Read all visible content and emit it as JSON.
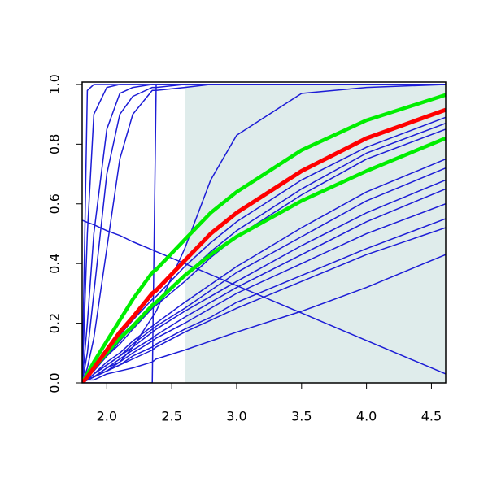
{
  "chart_data": {
    "type": "line",
    "xlim": [
      1.81,
      4.61
    ],
    "ylim": [
      0,
      1.008
    ],
    "xticks": [
      {
        "value": 2,
        "label": "2.0"
      },
      2.5,
      {
        "value": 3,
        "label": "3.0"
      },
      3.5,
      {
        "value": 4,
        "label": "4.0"
      },
      4.5
    ],
    "yticks": [
      {
        "value": 0,
        "label": "0.0"
      },
      0.2,
      0.4,
      0.6,
      0.8,
      {
        "value": 1,
        "label": "1.0"
      }
    ],
    "shaded_region": {
      "x": [
        2.6,
        4.61
      ],
      "y": [
        0,
        1
      ],
      "color": "#dfeceb"
    },
    "x": [
      1.81,
      1.85,
      1.9,
      2.0,
      2.1,
      2.2,
      2.35,
      2.38,
      2.6,
      2.8,
      3.0,
      3.5,
      4.0,
      4.61
    ],
    "series": [
      {
        "color": "#1c1cd6",
        "line_width": 1.5,
        "values": [
          0,
          0.98,
          1,
          1,
          1,
          1,
          1,
          1,
          1,
          1,
          1,
          1,
          1,
          1
        ]
      },
      {
        "color": "#1c1cd6",
        "line_width": 1.5,
        "values": [
          0,
          0.5,
          0.9,
          0.99,
          1,
          1,
          1,
          1,
          1,
          1,
          1,
          1,
          1,
          1
        ]
      },
      {
        "color": "#1c1cd6",
        "line_width": 1.5,
        "values": [
          0,
          0.2,
          0.5,
          0.85,
          0.97,
          0.99,
          1,
          1,
          1,
          1,
          1,
          1,
          1,
          1
        ]
      },
      {
        "color": "#1c1cd6",
        "line_width": 1.5,
        "values": [
          0,
          0.1,
          0.3,
          0.7,
          0.9,
          0.96,
          0.99,
          0.99,
          1,
          1,
          1,
          1,
          1,
          1
        ]
      },
      {
        "color": "#1c1cd6",
        "line_width": 1.5,
        "values": [
          0,
          0.05,
          0.15,
          0.45,
          0.75,
          0.9,
          0.98,
          0.98,
          0.99,
          1,
          1,
          1,
          1,
          1
        ]
      },
      {
        "color": "#1c1cd6",
        "line_width": 1.5,
        "values": [
          0,
          0,
          0,
          0,
          0,
          0,
          0,
          1,
          1,
          1,
          1,
          1,
          1,
          1
        ]
      },
      {
        "color": "#1c1cd6",
        "line_width": 1.5,
        "values": [
          0,
          0.01,
          0.02,
          0.04,
          0.07,
          0.12,
          0.22,
          0.24,
          0.45,
          0.68,
          0.83,
          0.97,
          0.99,
          1
        ]
      },
      {
        "color": "#1c1cd6",
        "line_width": 1.5,
        "values": [
          0.545,
          0.538,
          0.53,
          0.51,
          0.494,
          0.473,
          0.446,
          0.44,
          0.4,
          0.363,
          0.326,
          0.234,
          0.142,
          0.03
        ]
      },
      {
        "color": "#1c1cd6",
        "line_width": 1.5,
        "values": [
          0,
          0.02,
          0.05,
          0.1,
          0.16,
          0.21,
          0.28,
          0.29,
          0.39,
          0.47,
          0.54,
          0.68,
          0.79,
          0.89
        ]
      },
      {
        "color": "#1c1cd6",
        "line_width": 1.5,
        "values": [
          0,
          0.02,
          0.04,
          0.09,
          0.14,
          0.19,
          0.26,
          0.27,
          0.36,
          0.44,
          0.51,
          0.65,
          0.77,
          0.87
        ]
      },
      {
        "color": "#1c1cd6",
        "line_width": 1.5,
        "values": [
          0,
          0.02,
          0.04,
          0.09,
          0.13,
          0.18,
          0.25,
          0.26,
          0.34,
          0.42,
          0.49,
          0.63,
          0.75,
          0.85
        ]
      },
      {
        "color": "#1c1cd6",
        "line_width": 1.5,
        "values": [
          0,
          0.01,
          0.03,
          0.07,
          0.1,
          0.14,
          0.19,
          0.2,
          0.27,
          0.33,
          0.39,
          0.52,
          0.64,
          0.75
        ]
      },
      {
        "color": "#1c1cd6",
        "line_width": 1.5,
        "values": [
          0,
          0.01,
          0.03,
          0.06,
          0.09,
          0.13,
          0.18,
          0.19,
          0.25,
          0.31,
          0.37,
          0.49,
          0.61,
          0.72
        ]
      },
      {
        "color": "#1c1cd6",
        "line_width": 1.5,
        "values": [
          0,
          0.01,
          0.03,
          0.06,
          0.09,
          0.12,
          0.17,
          0.18,
          0.24,
          0.29,
          0.34,
          0.46,
          0.57,
          0.68
        ]
      },
      {
        "color": "#1c1cd6",
        "line_width": 1.5,
        "values": [
          0,
          0.01,
          0.02,
          0.05,
          0.08,
          0.11,
          0.15,
          0.16,
          0.22,
          0.27,
          0.32,
          0.43,
          0.54,
          0.65
        ]
      },
      {
        "color": "#1c1cd6",
        "line_width": 1.5,
        "values": [
          0,
          0.01,
          0.02,
          0.05,
          0.07,
          0.1,
          0.14,
          0.15,
          0.2,
          0.25,
          0.3,
          0.4,
          0.5,
          0.6
        ]
      },
      {
        "color": "#1c1cd6",
        "line_width": 1.5,
        "values": [
          0,
          0.01,
          0.02,
          0.04,
          0.06,
          0.09,
          0.12,
          0.13,
          0.18,
          0.22,
          0.27,
          0.36,
          0.45,
          0.55
        ]
      },
      {
        "color": "#1c1cd6",
        "line_width": 1.5,
        "values": [
          0,
          0.01,
          0.02,
          0.04,
          0.06,
          0.08,
          0.11,
          0.12,
          0.17,
          0.21,
          0.25,
          0.34,
          0.43,
          0.52
        ]
      },
      {
        "color": "#1c1cd6",
        "line_width": 1.5,
        "values": [
          0,
          0.01,
          0.01,
          0.03,
          0.04,
          0.05,
          0.07,
          0.08,
          0.11,
          0.14,
          0.17,
          0.24,
          0.32,
          0.43
        ]
      },
      {
        "color": "#00ee00",
        "line_width": 4.5,
        "values": [
          0,
          0.03,
          0.07,
          0.14,
          0.21,
          0.28,
          0.37,
          0.38,
          0.48,
          0.57,
          0.64,
          0.78,
          0.88,
          0.965
        ]
      },
      {
        "color": "#00ee00",
        "line_width": 4.5,
        "values": [
          0,
          0.02,
          0.05,
          0.1,
          0.15,
          0.19,
          0.26,
          0.27,
          0.36,
          0.43,
          0.49,
          0.61,
          0.71,
          0.82
        ]
      },
      {
        "color": "#ff0000",
        "line_width": 5,
        "values": [
          0,
          0.02,
          0.05,
          0.11,
          0.17,
          0.22,
          0.3,
          0.31,
          0.41,
          0.5,
          0.57,
          0.71,
          0.82,
          0.915
        ]
      }
    ]
  }
}
